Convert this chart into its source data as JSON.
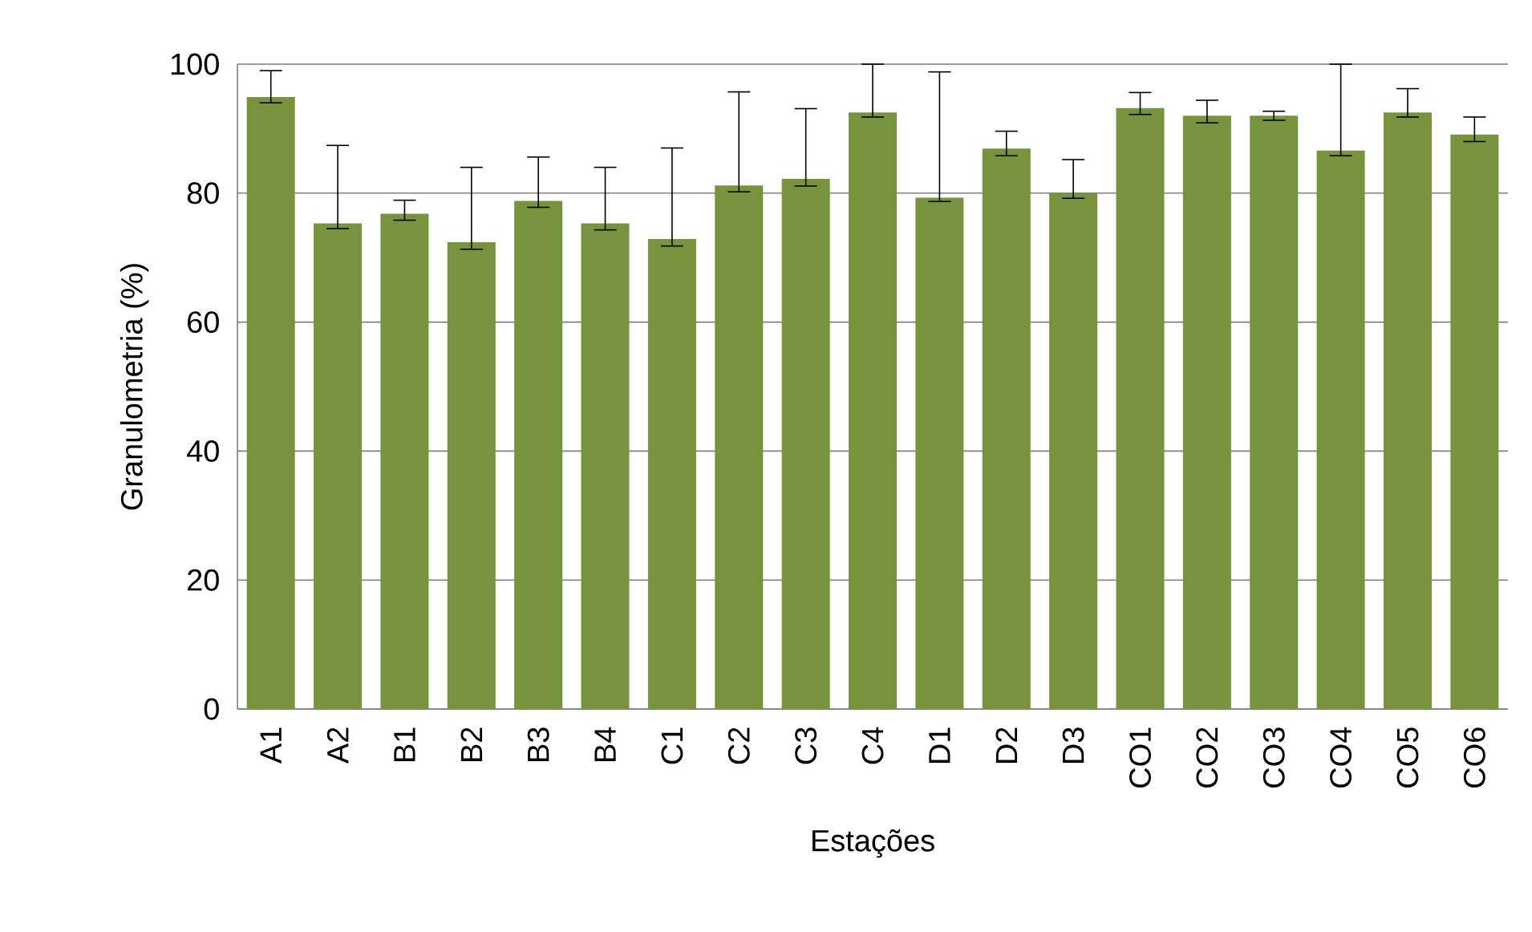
{
  "chart_data": {
    "type": "bar",
    "xlabel": "Estações",
    "ylabel": "Granulometria (%)",
    "categories": [
      "A1",
      "A2",
      "B1",
      "B2",
      "B3",
      "B4",
      "C1",
      "C2",
      "C3",
      "C4",
      "D1",
      "D2",
      "D3",
      "CO1",
      "CO2",
      "CO3",
      "CO4",
      "CO5",
      "CO6"
    ],
    "values": [
      94.9,
      75.3,
      76.8,
      72.4,
      78.8,
      75.3,
      72.9,
      81.2,
      82.2,
      92.5,
      79.3,
      86.9,
      80.0,
      93.2,
      92.0,
      92.0,
      86.6,
      92.5,
      89.1
    ],
    "errors": [
      [
        94.0,
        99.0
      ],
      [
        74.5,
        87.4
      ],
      [
        75.8,
        78.9
      ],
      [
        71.3,
        84.0
      ],
      [
        77.8,
        85.6
      ],
      [
        74.3,
        84.0
      ],
      [
        71.8,
        87.0
      ],
      [
        80.2,
        95.7
      ],
      [
        81.1,
        93.1
      ],
      [
        91.8,
        100
      ],
      [
        78.7,
        98.8
      ],
      [
        85.8,
        89.6
      ],
      [
        79.2,
        85.2
      ],
      [
        92.2,
        95.6
      ],
      [
        90.9,
        94.4
      ],
      [
        91.3,
        92.7
      ],
      [
        85.8,
        100
      ],
      [
        91.8,
        96.2
      ],
      [
        88.0,
        91.8
      ]
    ],
    "color": "#77933c",
    "ylim": [
      0,
      100
    ],
    "yticks": [
      0,
      20,
      40,
      60,
      80,
      100
    ],
    "grid": "y"
  }
}
